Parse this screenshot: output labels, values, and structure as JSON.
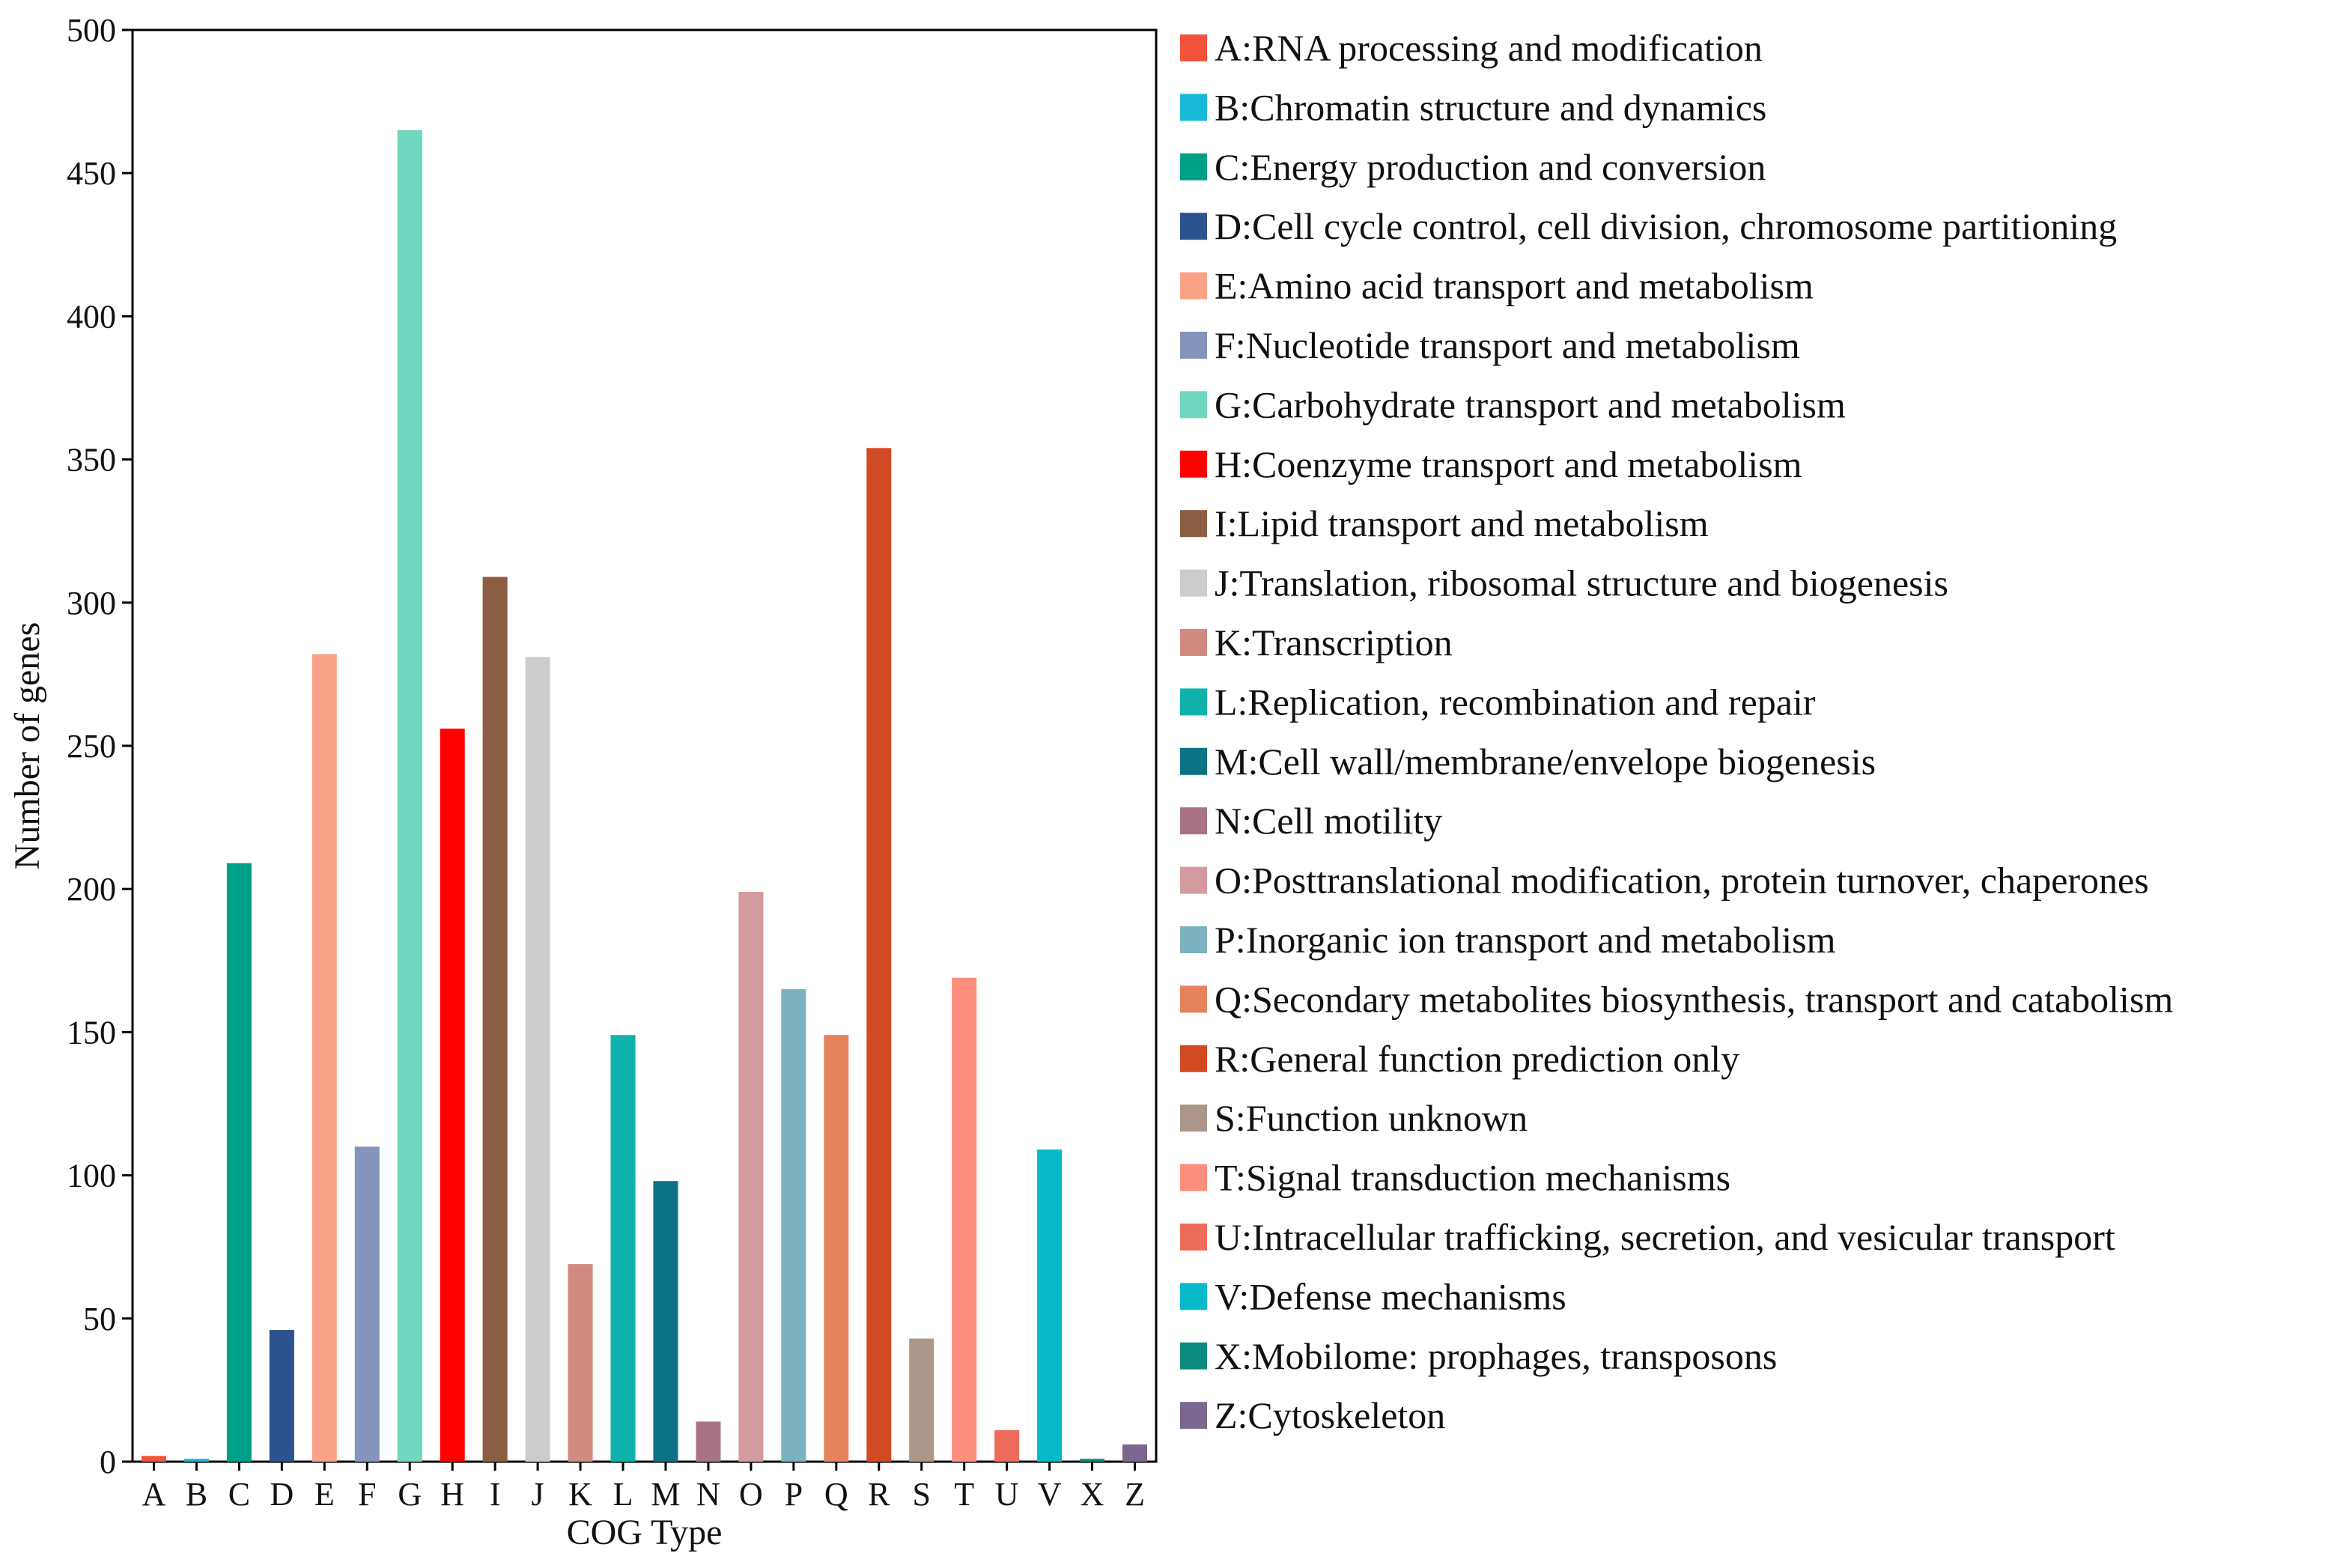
{
  "chart_data": {
    "type": "bar",
    "title": "",
    "xlabel": "COG Type",
    "ylabel": "Number of genes",
    "ylim": [
      0,
      500
    ],
    "yticks": [
      0,
      50,
      100,
      150,
      200,
      250,
      300,
      350,
      400,
      450,
      500
    ],
    "grid": false,
    "legend_position": "right",
    "categories": [
      "A",
      "B",
      "C",
      "D",
      "E",
      "F",
      "G",
      "H",
      "I",
      "J",
      "K",
      "L",
      "M",
      "N",
      "O",
      "P",
      "Q",
      "R",
      "S",
      "T",
      "U",
      "V",
      "X",
      "Z"
    ],
    "values": [
      2,
      1,
      209,
      46,
      282,
      110,
      465,
      256,
      309,
      281,
      69,
      149,
      98,
      14,
      199,
      165,
      149,
      354,
      43,
      169,
      11,
      109,
      1,
      6
    ],
    "colors": [
      "#f4533b",
      "#19b8d6",
      "#00a087",
      "#2d5290",
      "#f9a285",
      "#8494ba",
      "#6fd6bf",
      "#ff0000",
      "#8b5d43",
      "#cccccc",
      "#d08a80",
      "#11b2ac",
      "#0b7384",
      "#a87382",
      "#d39aa0",
      "#7cb1bf",
      "#e5835d",
      "#d24a23",
      "#aa9789",
      "#fd8e7c",
      "#ed6c59",
      "#08b9ca",
      "#0d8b81",
      "#7b6790"
    ],
    "legend": [
      "A:RNA processing and modification",
      "B:Chromatin structure and dynamics",
      "C:Energy production and conversion",
      "D:Cell cycle control, cell division, chromosome partitioning",
      "E:Amino acid transport and metabolism",
      "F:Nucleotide transport and metabolism",
      "G:Carbohydrate transport and metabolism",
      "H:Coenzyme transport and metabolism",
      "I:Lipid transport and metabolism",
      "J:Translation, ribosomal structure and biogenesis",
      "K:Transcription",
      "L:Replication, recombination and repair",
      "M:Cell wall/membrane/envelope biogenesis",
      "N:Cell motility",
      "O:Posttranslational modification, protein turnover, chaperones",
      "P:Inorganic ion transport and metabolism",
      "Q:Secondary metabolites biosynthesis, transport and catabolism",
      "R:General function prediction only",
      "S:Function unknown",
      "T:Signal transduction mechanisms",
      "U:Intracellular trafficking, secretion, and vesicular transport",
      "V:Defense mechanisms",
      "X:Mobilome: prophages, transposons",
      "Z:Cytoskeleton"
    ]
  }
}
